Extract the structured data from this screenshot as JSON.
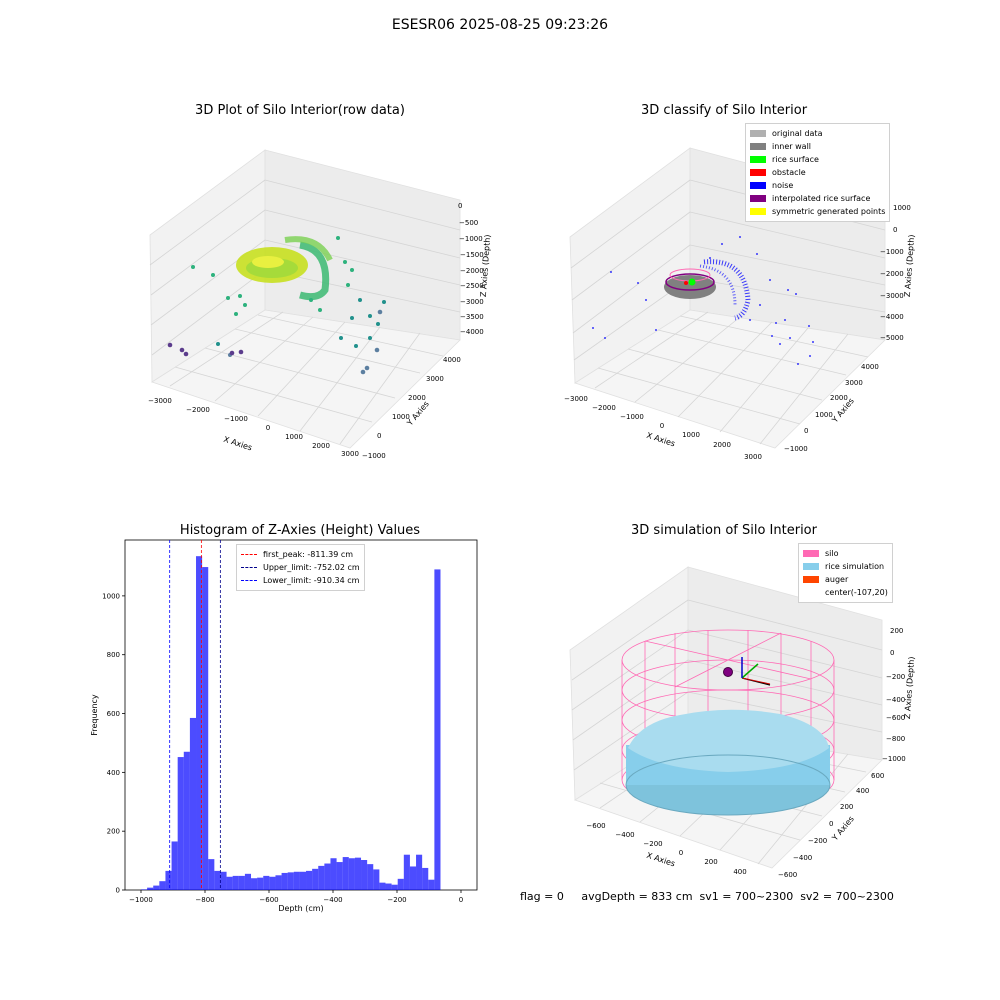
{
  "figure": {
    "suptitle": "ESESR06 2025-08-25 09:23:26",
    "status_text": "flag = 0     avgDepth = 833 cm  sv1 = 700~2300  sv2 = 700~2300"
  },
  "panels": {
    "p1": {
      "title": "3D Plot of Silo Interior(row data)",
      "xlabel": "X Axies",
      "ylabel": "Y Axies",
      "zlabel": "Z Axies (Depth)",
      "xticks": [
        "−3000",
        "−2000",
        "−1000",
        "0",
        "1000",
        "2000",
        "3000"
      ],
      "yticks": [
        "−1000",
        "0",
        "1000",
        "2000",
        "3000",
        "4000"
      ],
      "zticks": [
        "0",
        "−500",
        "−1000",
        "−1500",
        "−2000",
        "−2500",
        "−3000",
        "−3500",
        "−4000"
      ]
    },
    "p2": {
      "title": "3D classify of Silo Interior",
      "xlabel": "X Axies",
      "ylabel": "Y Axies",
      "zlabel": "Z Axies (Depth)",
      "xticks": [
        "−3000",
        "−2000",
        "−1000",
        "0",
        "1000",
        "2000",
        "3000"
      ],
      "yticks": [
        "−1000",
        "0",
        "1000",
        "2000",
        "3000",
        "4000"
      ],
      "zticks": [
        "1000",
        "0",
        "−1000",
        "−2000",
        "−3000",
        "−4000",
        "−5000"
      ],
      "legend": [
        {
          "label": "original data",
          "color": "#b0b0b0"
        },
        {
          "label": "inner wall",
          "color": "#808080"
        },
        {
          "label": "rice surface",
          "color": "#00ff00"
        },
        {
          "label": "obstacle",
          "color": "#ff0000"
        },
        {
          "label": "noise",
          "color": "#0000ff"
        },
        {
          "label": "interpolated rice surface",
          "color": "#800080"
        },
        {
          "label": "symmetric generated points",
          "color": "#ffff00"
        }
      ]
    },
    "p4": {
      "title": "3D simulation of Silo Interior",
      "xlabel": "X Axies",
      "ylabel": "Y Axies",
      "zlabel": "Z Axies (Depth)",
      "xticks": [
        "−600",
        "−400",
        "−200",
        "0",
        "200",
        "400"
      ],
      "yticks": [
        "−600",
        "−400",
        "−200",
        "0",
        "200",
        "400",
        "600"
      ],
      "zticks": [
        "200",
        "0",
        "−200",
        "−400",
        "−600",
        "−800",
        "−1000"
      ],
      "legend": [
        {
          "label": "silo",
          "color": "#ff69b4"
        },
        {
          "label": "rice simulation",
          "color": "#87ceeb"
        },
        {
          "label": "auger",
          "color": "#ff4500"
        },
        {
          "label": "center(-107,20)",
          "color": ""
        }
      ]
    }
  },
  "chart_data": {
    "type": "bar",
    "title": "Histogram of Z-Axies (Height) Values",
    "xlabel": "Depth (cm)",
    "ylabel": "Frequency",
    "xlim": [
      -1050,
      50
    ],
    "ylim": [
      0,
      1190
    ],
    "xticks": [
      -1000,
      -800,
      -600,
      -400,
      -200,
      0
    ],
    "xtick_labels": [
      "−1000",
      "−800",
      "−600",
      "−400",
      "−200",
      "0"
    ],
    "yticks": [
      0,
      200,
      400,
      600,
      800,
      1000
    ],
    "bin_start": -1000,
    "bin_width": 19.1,
    "values": [
      2,
      8,
      15,
      30,
      65,
      165,
      452,
      470,
      585,
      1135,
      1098,
      105,
      65,
      62,
      45,
      48,
      48,
      55,
      40,
      42,
      48,
      45,
      50,
      58,
      60,
      62,
      62,
      65,
      72,
      82,
      90,
      108,
      95,
      112,
      108,
      110,
      102,
      88,
      70,
      25,
      22,
      18,
      38,
      120,
      80,
      120,
      75,
      35,
      1090
    ],
    "color": "#0000ff",
    "lines": [
      {
        "label": "first_peak: -811.39 cm",
        "x": -811.39,
        "color": "#ff0000"
      },
      {
        "label": "Upper_limit: -752.02 cm",
        "x": -752.02,
        "color": "#00008b"
      },
      {
        "label": "Lower_limit: -910.34 cm",
        "x": -910.34,
        "color": "#0000ff"
      }
    ]
  }
}
